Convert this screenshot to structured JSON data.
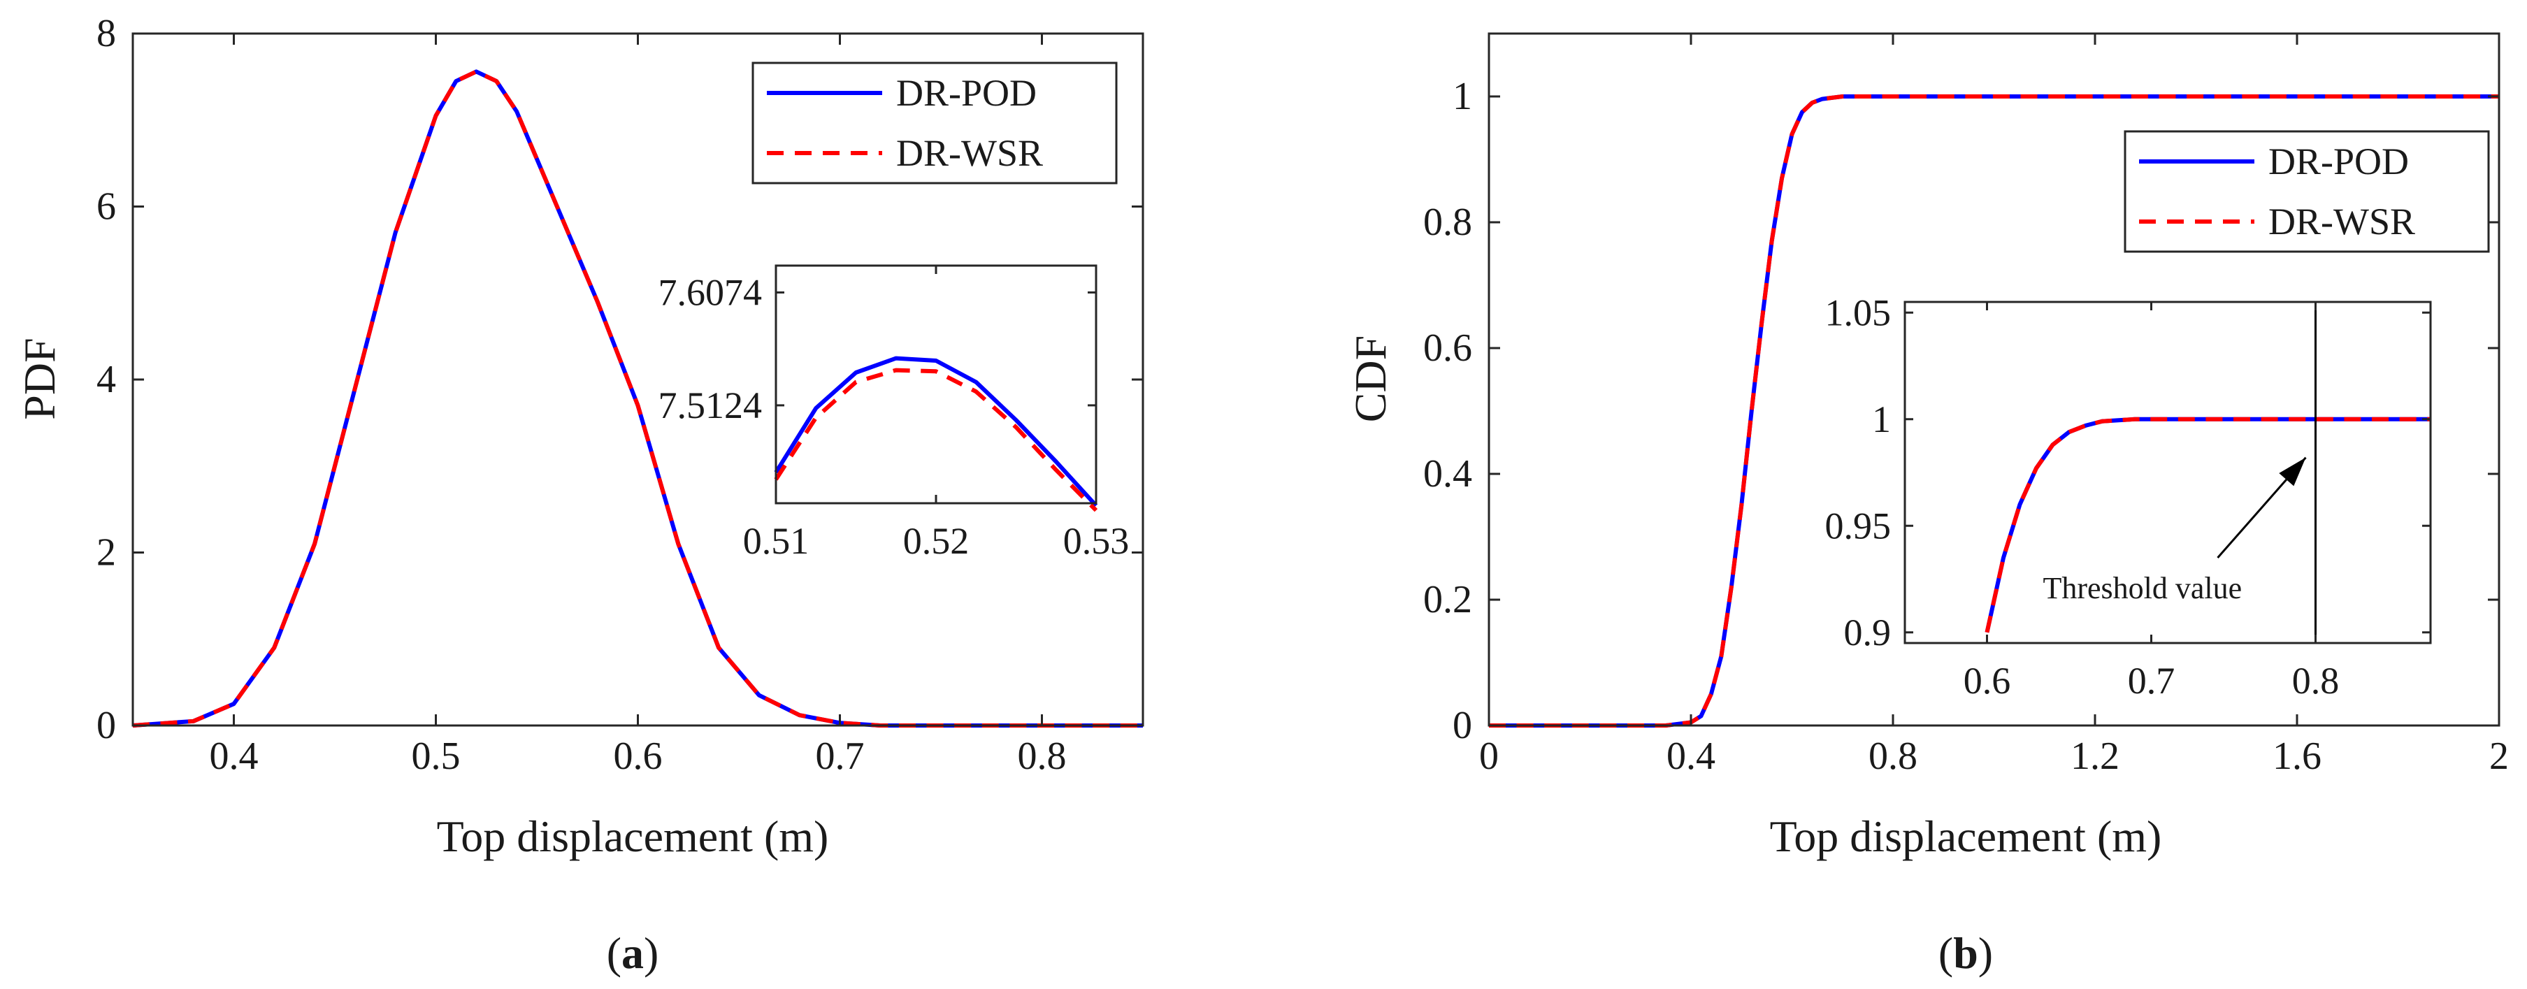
{
  "colors": {
    "pod": "#0000ff",
    "wsr": "#ff0000",
    "axes": "#262626",
    "background": "#ffffff"
  },
  "captions": {
    "a_open": "(",
    "a_letter": "a",
    "a_close": ")",
    "b_open": "(",
    "b_letter": "b",
    "b_close": ")"
  },
  "chart_data": [
    {
      "id": "a",
      "type": "line",
      "xlabel": "Top displacement (m)",
      "ylabel": "PDF",
      "xlim": [
        0.35,
        0.85
      ],
      "ylim": [
        0,
        8
      ],
      "xticks": [
        "0.4",
        "0.5",
        "0.6",
        "0.7",
        "0.8"
      ],
      "yticks": [
        "0",
        "2",
        "4",
        "6",
        "8"
      ],
      "legend": {
        "placement": "top-right",
        "entries": [
          "DR-POD",
          "DR-WSR"
        ]
      },
      "series": [
        {
          "name": "DR-POD",
          "style": "solid",
          "x": [
            0.35,
            0.38,
            0.4,
            0.42,
            0.44,
            0.46,
            0.48,
            0.5,
            0.51,
            0.52,
            0.53,
            0.54,
            0.56,
            0.58,
            0.6,
            0.62,
            0.64,
            0.66,
            0.68,
            0.7,
            0.72,
            0.75,
            0.8,
            0.85
          ],
          "y": [
            0,
            0.05,
            0.25,
            0.9,
            2.1,
            3.9,
            5.7,
            7.05,
            7.45,
            7.56,
            7.45,
            7.1,
            6.0,
            4.9,
            3.7,
            2.1,
            0.9,
            0.35,
            0.12,
            0.03,
            0,
            0,
            0,
            0
          ]
        },
        {
          "name": "DR-WSR",
          "style": "dashed",
          "x": [
            0.35,
            0.38,
            0.4,
            0.42,
            0.44,
            0.46,
            0.48,
            0.5,
            0.51,
            0.52,
            0.53,
            0.54,
            0.56,
            0.58,
            0.6,
            0.62,
            0.64,
            0.66,
            0.68,
            0.7,
            0.72,
            0.75,
            0.8,
            0.85
          ],
          "y": [
            0,
            0.05,
            0.25,
            0.9,
            2.1,
            3.9,
            5.7,
            7.05,
            7.45,
            7.56,
            7.45,
            7.1,
            6.0,
            4.9,
            3.7,
            2.1,
            0.9,
            0.35,
            0.12,
            0.03,
            0,
            0,
            0,
            0
          ]
        }
      ],
      "inset": {
        "xlim": [
          0.51,
          0.53
        ],
        "ylim": [
          7.43,
          7.63
        ],
        "xticks": [
          "0.51",
          "0.52",
          "0.53"
        ],
        "yticks": [
          "7.5124",
          "7.6074"
        ],
        "ytick_values": [
          7.5124,
          7.6074
        ],
        "series": [
          {
            "name": "DR-POD",
            "x": [
              0.51,
              0.5125,
              0.515,
              0.5175,
              0.52,
              0.5225,
              0.525,
              0.5275,
              0.53
            ],
            "y": [
              7.456,
              7.51,
              7.54,
              7.552,
              7.55,
              7.532,
              7.5,
              7.465,
              7.428
            ]
          },
          {
            "name": "DR-WSR",
            "x": [
              0.51,
              0.5125,
              0.515,
              0.5175,
              0.52,
              0.5225,
              0.525,
              0.5275,
              0.53
            ],
            "y": [
              7.45,
              7.502,
              7.532,
              7.542,
              7.541,
              7.524,
              7.494,
              7.458,
              7.424
            ]
          }
        ]
      }
    },
    {
      "id": "b",
      "type": "line",
      "xlabel": "Top displacement (m)",
      "ylabel": "CDF",
      "xlim": [
        0,
        2
      ],
      "ylim": [
        0,
        1.1
      ],
      "xticks": [
        "0",
        "0.4",
        "0.8",
        "1.2",
        "1.6",
        "2"
      ],
      "yticks": [
        "0",
        "0.2",
        "0.4",
        "0.6",
        "0.8",
        "1"
      ],
      "legend": {
        "placement": "top-right",
        "entries": [
          "DR-POD",
          "DR-WSR"
        ]
      },
      "series": [
        {
          "name": "DR-POD",
          "style": "solid",
          "x": [
            0,
            0.35,
            0.4,
            0.42,
            0.44,
            0.46,
            0.48,
            0.5,
            0.52,
            0.54,
            0.56,
            0.58,
            0.6,
            0.62,
            0.64,
            0.66,
            0.7,
            0.75,
            2.0
          ],
          "y": [
            0,
            0,
            0.005,
            0.015,
            0.05,
            0.11,
            0.22,
            0.35,
            0.5,
            0.64,
            0.77,
            0.87,
            0.94,
            0.975,
            0.99,
            0.996,
            1.0,
            1.0,
            1.0
          ]
        },
        {
          "name": "DR-WSR",
          "style": "dashed",
          "x": [
            0,
            0.35,
            0.4,
            0.42,
            0.44,
            0.46,
            0.48,
            0.5,
            0.52,
            0.54,
            0.56,
            0.58,
            0.6,
            0.62,
            0.64,
            0.66,
            0.7,
            0.75,
            2.0
          ],
          "y": [
            0,
            0,
            0.005,
            0.015,
            0.05,
            0.11,
            0.22,
            0.35,
            0.5,
            0.64,
            0.77,
            0.87,
            0.94,
            0.975,
            0.99,
            0.996,
            1.0,
            1.0,
            1.0
          ]
        }
      ],
      "inset": {
        "xlim": [
          0.55,
          0.87
        ],
        "ylim": [
          0.895,
          1.055
        ],
        "xticks": [
          "0.6",
          "0.7",
          "0.8"
        ],
        "xtick_values": [
          0.6,
          0.7,
          0.8
        ],
        "yticks": [
          "0.9",
          "0.95",
          "1",
          "1.05"
        ],
        "ytick_values": [
          0.9,
          0.95,
          1.0,
          1.05
        ],
        "threshold_x": 0.8,
        "annotation": "Threshold value",
        "series": [
          {
            "name": "DR-POD",
            "x": [
              0.6,
              0.61,
              0.62,
              0.63,
              0.64,
              0.65,
              0.66,
              0.67,
              0.68,
              0.69,
              0.7,
              0.75,
              0.8,
              0.87
            ],
            "y": [
              0.9,
              0.935,
              0.96,
              0.977,
              0.988,
              0.994,
              0.997,
              0.999,
              0.9995,
              1.0,
              1.0,
              1.0,
              1.0,
              1.0
            ]
          },
          {
            "name": "DR-WSR",
            "x": [
              0.6,
              0.61,
              0.62,
              0.63,
              0.64,
              0.65,
              0.66,
              0.67,
              0.68,
              0.69,
              0.7,
              0.75,
              0.8,
              0.87
            ],
            "y": [
              0.9,
              0.935,
              0.96,
              0.977,
              0.988,
              0.994,
              0.997,
              0.999,
              0.9995,
              1.0,
              1.0,
              1.0,
              1.0,
              1.0
            ]
          }
        ]
      }
    }
  ]
}
